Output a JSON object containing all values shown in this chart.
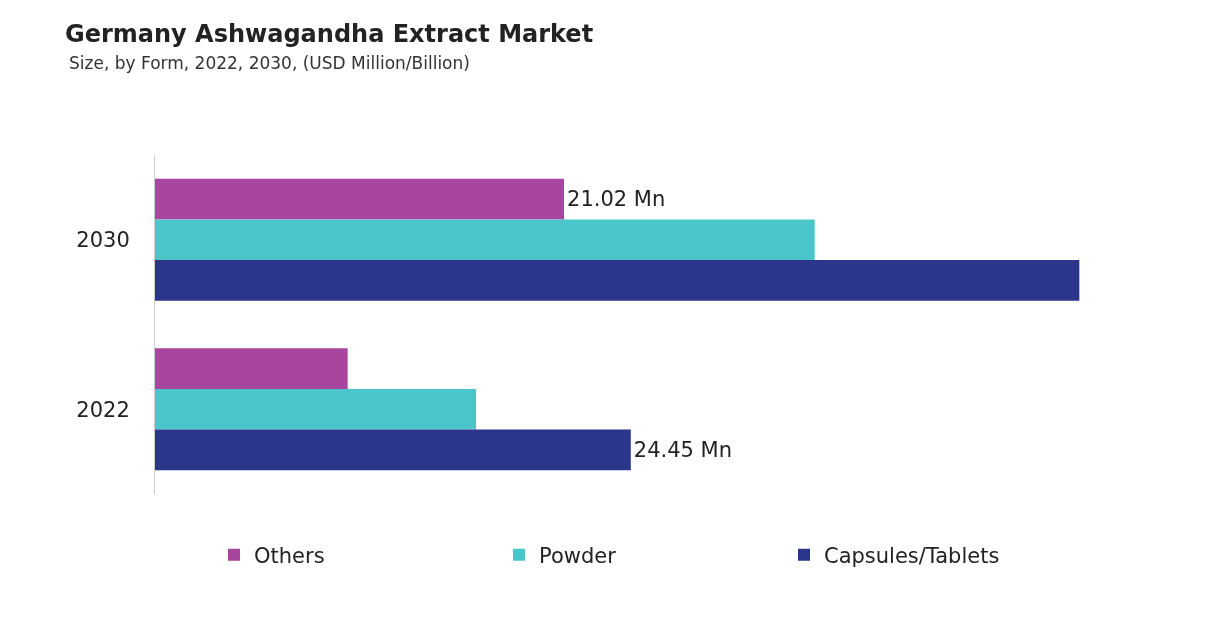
{
  "chart_data": {
    "type": "bar",
    "orientation": "horizontal",
    "title": "Germany Ashwagandha Extract Market",
    "subtitle": "Size, by Form, 2022, 2030, (USD Million/Billion)",
    "categories": [
      "2030",
      "2022"
    ],
    "series": [
      {
        "name": "Others",
        "color": "#a8459f",
        "values": [
          21.02,
          9.9
        ],
        "value_labels": [
          "21.02 Mn",
          null
        ]
      },
      {
        "name": "Powder",
        "color": "#4ac6cb",
        "values": [
          33.9,
          16.5
        ],
        "value_labels": [
          null,
          null
        ]
      },
      {
        "name": "Capsules/Tablets",
        "color": "#2b358a",
        "values": [
          47.5,
          24.45
        ],
        "value_labels": [
          null,
          "24.45 Mn"
        ]
      }
    ],
    "tick_labels": "y",
    "grid": false,
    "legend": "bottom"
  }
}
